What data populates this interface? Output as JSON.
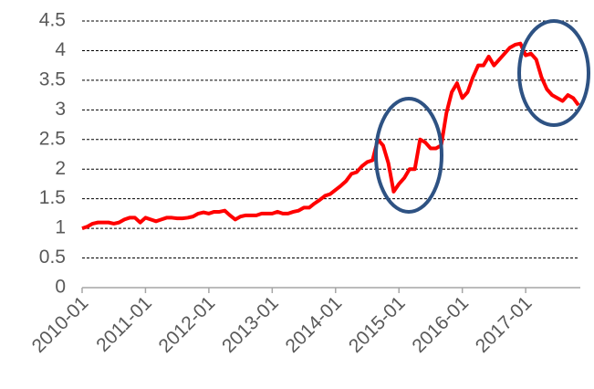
{
  "chart_data": {
    "type": "line",
    "categories": [
      "2010-01",
      null,
      null,
      null,
      null,
      null,
      null,
      null,
      null,
      null,
      null,
      null,
      "2011-01",
      null,
      null,
      null,
      null,
      null,
      null,
      null,
      null,
      null,
      null,
      null,
      "2012-01",
      null,
      null,
      null,
      null,
      null,
      null,
      null,
      null,
      null,
      null,
      null,
      "2013-01",
      null,
      null,
      null,
      null,
      null,
      null,
      null,
      null,
      null,
      null,
      null,
      "2014-01",
      null,
      null,
      null,
      null,
      null,
      null,
      null,
      null,
      null,
      null,
      null,
      "2015-01",
      null,
      null,
      null,
      null,
      null,
      null,
      null,
      null,
      null,
      null,
      null,
      "2016-01",
      null,
      null,
      null,
      null,
      null,
      null,
      null,
      null,
      null,
      null,
      null,
      "2017-01",
      null,
      null,
      null,
      null,
      null,
      null,
      null,
      null,
      null,
      null
    ],
    "series": [
      {
        "color": "#ff0000",
        "values": [
          1.0,
          1.03,
          1.08,
          1.1,
          1.1,
          1.1,
          1.08,
          1.1,
          1.15,
          1.18,
          1.18,
          1.1,
          1.18,
          1.15,
          1.12,
          1.15,
          1.18,
          1.18,
          1.17,
          1.17,
          1.18,
          1.2,
          1.25,
          1.27,
          1.25,
          1.28,
          1.28,
          1.3,
          1.22,
          1.15,
          1.2,
          1.22,
          1.22,
          1.22,
          1.25,
          1.25,
          1.25,
          1.28,
          1.25,
          1.25,
          1.28,
          1.3,
          1.35,
          1.35,
          1.42,
          1.48,
          1.55,
          1.58,
          1.65,
          1.72,
          1.8,
          1.92,
          1.95,
          2.05,
          2.12,
          2.15,
          2.5,
          2.4,
          2.1,
          1.62,
          1.75,
          1.85,
          2.0,
          2.0,
          2.5,
          2.45,
          2.35,
          2.35,
          2.4,
          2.95,
          3.3,
          3.45,
          3.2,
          3.3,
          3.55,
          3.75,
          3.75,
          3.9,
          3.75,
          3.85,
          3.95,
          4.05,
          4.1,
          4.12,
          3.92,
          3.95,
          3.85,
          3.55,
          3.35,
          3.25,
          3.2,
          3.15,
          3.25,
          3.2,
          3.08
        ]
      }
    ],
    "ylim": [
      0,
      4.5
    ],
    "yticks": [
      0,
      0.5,
      1,
      1.5,
      2,
      2.5,
      3,
      3.5,
      4,
      4.5
    ],
    "grid": true
  }
}
